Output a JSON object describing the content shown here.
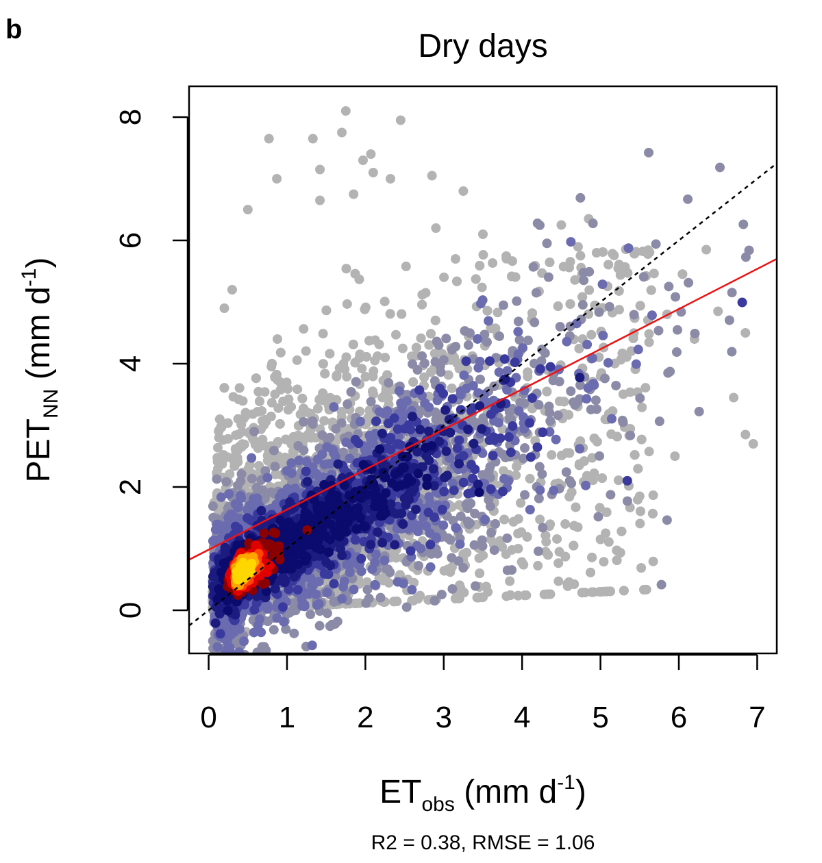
{
  "panel_label": "b",
  "chart_data": {
    "type": "scatter",
    "title": "Dry days",
    "xlabel": {
      "base": "ET",
      "sub": "obs",
      "unit_pre": " (mm d",
      "sup": "-1",
      "unit_post": ")"
    },
    "ylabel": {
      "base": "PET",
      "sub": "NN",
      "unit_pre": " (mm d",
      "sup": "-1",
      "unit_post": ")"
    },
    "xlim": [
      -0.25,
      7.25
    ],
    "ylim": [
      -0.7,
      8.5
    ],
    "xticks": [
      0,
      1,
      2,
      3,
      4,
      5,
      6,
      7
    ],
    "xtick_labels": [
      "0",
      "1",
      "2",
      "3",
      "4",
      "5",
      "6",
      "7"
    ],
    "yticks": [
      0,
      2,
      4,
      6,
      8
    ],
    "ytick_labels": [
      "0",
      "2",
      "4",
      "6",
      "8"
    ],
    "annotation": "R2 = 0.38, RMSE = 1.06",
    "point_density_colors": [
      "#b3b3b3",
      "#8b8ba8",
      "#6b6bb0",
      "#3a3a9e",
      "#1c1c80",
      "#0b0b6e",
      "#8b0000",
      "#e00000",
      "#ff4500",
      "#ffa500",
      "#ffd700"
    ],
    "density_core": {
      "x": 0.4,
      "y": 0.6
    },
    "outlier_points": [
      {
        "x": 1.75,
        "y": 8.1
      },
      {
        "x": 2.45,
        "y": 7.95
      },
      {
        "x": 1.7,
        "y": 7.75
      },
      {
        "x": 0.77,
        "y": 7.65
      },
      {
        "x": 1.33,
        "y": 7.65
      },
      {
        "x": 2.07,
        "y": 7.4
      },
      {
        "x": 1.97,
        "y": 7.3
      },
      {
        "x": 1.42,
        "y": 7.15
      },
      {
        "x": 2.1,
        "y": 7.1
      },
      {
        "x": 0.87,
        "y": 7.0
      },
      {
        "x": 2.32,
        "y": 7.0
      },
      {
        "x": 2.85,
        "y": 7.05
      },
      {
        "x": 3.25,
        "y": 6.8
      },
      {
        "x": 1.85,
        "y": 6.75
      },
      {
        "x": 1.42,
        "y": 6.65
      },
      {
        "x": 0.5,
        "y": 6.5
      },
      {
        "x": 4.5,
        "y": 6.25
      },
      {
        "x": 4.85,
        "y": 6.35
      },
      {
        "x": 6.35,
        "y": 5.85
      },
      {
        "x": 6.2,
        "y": 4.4
      },
      {
        "x": 6.7,
        "y": 3.45
      },
      {
        "x": 6.85,
        "y": 2.85
      },
      {
        "x": 6.95,
        "y": 2.7
      },
      {
        "x": 6.85,
        "y": 4.5
      },
      {
        "x": 5.5,
        "y": 1.85
      },
      {
        "x": 5.0,
        "y": 1.15
      },
      {
        "x": 4.3,
        "y": 0.95
      },
      {
        "x": 4.55,
        "y": 1.4
      },
      {
        "x": 3.95,
        "y": 1.0
      },
      {
        "x": 3.6,
        "y": 1.15
      },
      {
        "x": 5.95,
        "y": 2.5
      },
      {
        "x": 5.85,
        "y": 4.8
      },
      {
        "x": 4.95,
        "y": 5.8
      },
      {
        "x": 0.48,
        "y": -0.35
      },
      {
        "x": 0.6,
        "y": -0.2
      },
      {
        "x": 1.1,
        "y": 0.0
      },
      {
        "x": 0.2,
        "y": 4.9
      },
      {
        "x": 0.3,
        "y": 5.2
      },
      {
        "x": 6.5,
        "y": 4.85
      },
      {
        "x": 3.5,
        "y": 6.1
      },
      {
        "x": 2.9,
        "y": 6.2
      },
      {
        "x": 3.15,
        "y": 5.7
      }
    ],
    "series": [
      {
        "name": "1:1",
        "type": "line",
        "style": "dotted",
        "color": "#000000",
        "x": [
          -0.25,
          7.25
        ],
        "y": [
          -0.25,
          7.25
        ]
      },
      {
        "name": "regression",
        "type": "line",
        "style": "solid",
        "color": "#ee1111",
        "x": [
          -0.25,
          7.25
        ],
        "y": [
          0.82,
          5.7
        ]
      }
    ]
  }
}
